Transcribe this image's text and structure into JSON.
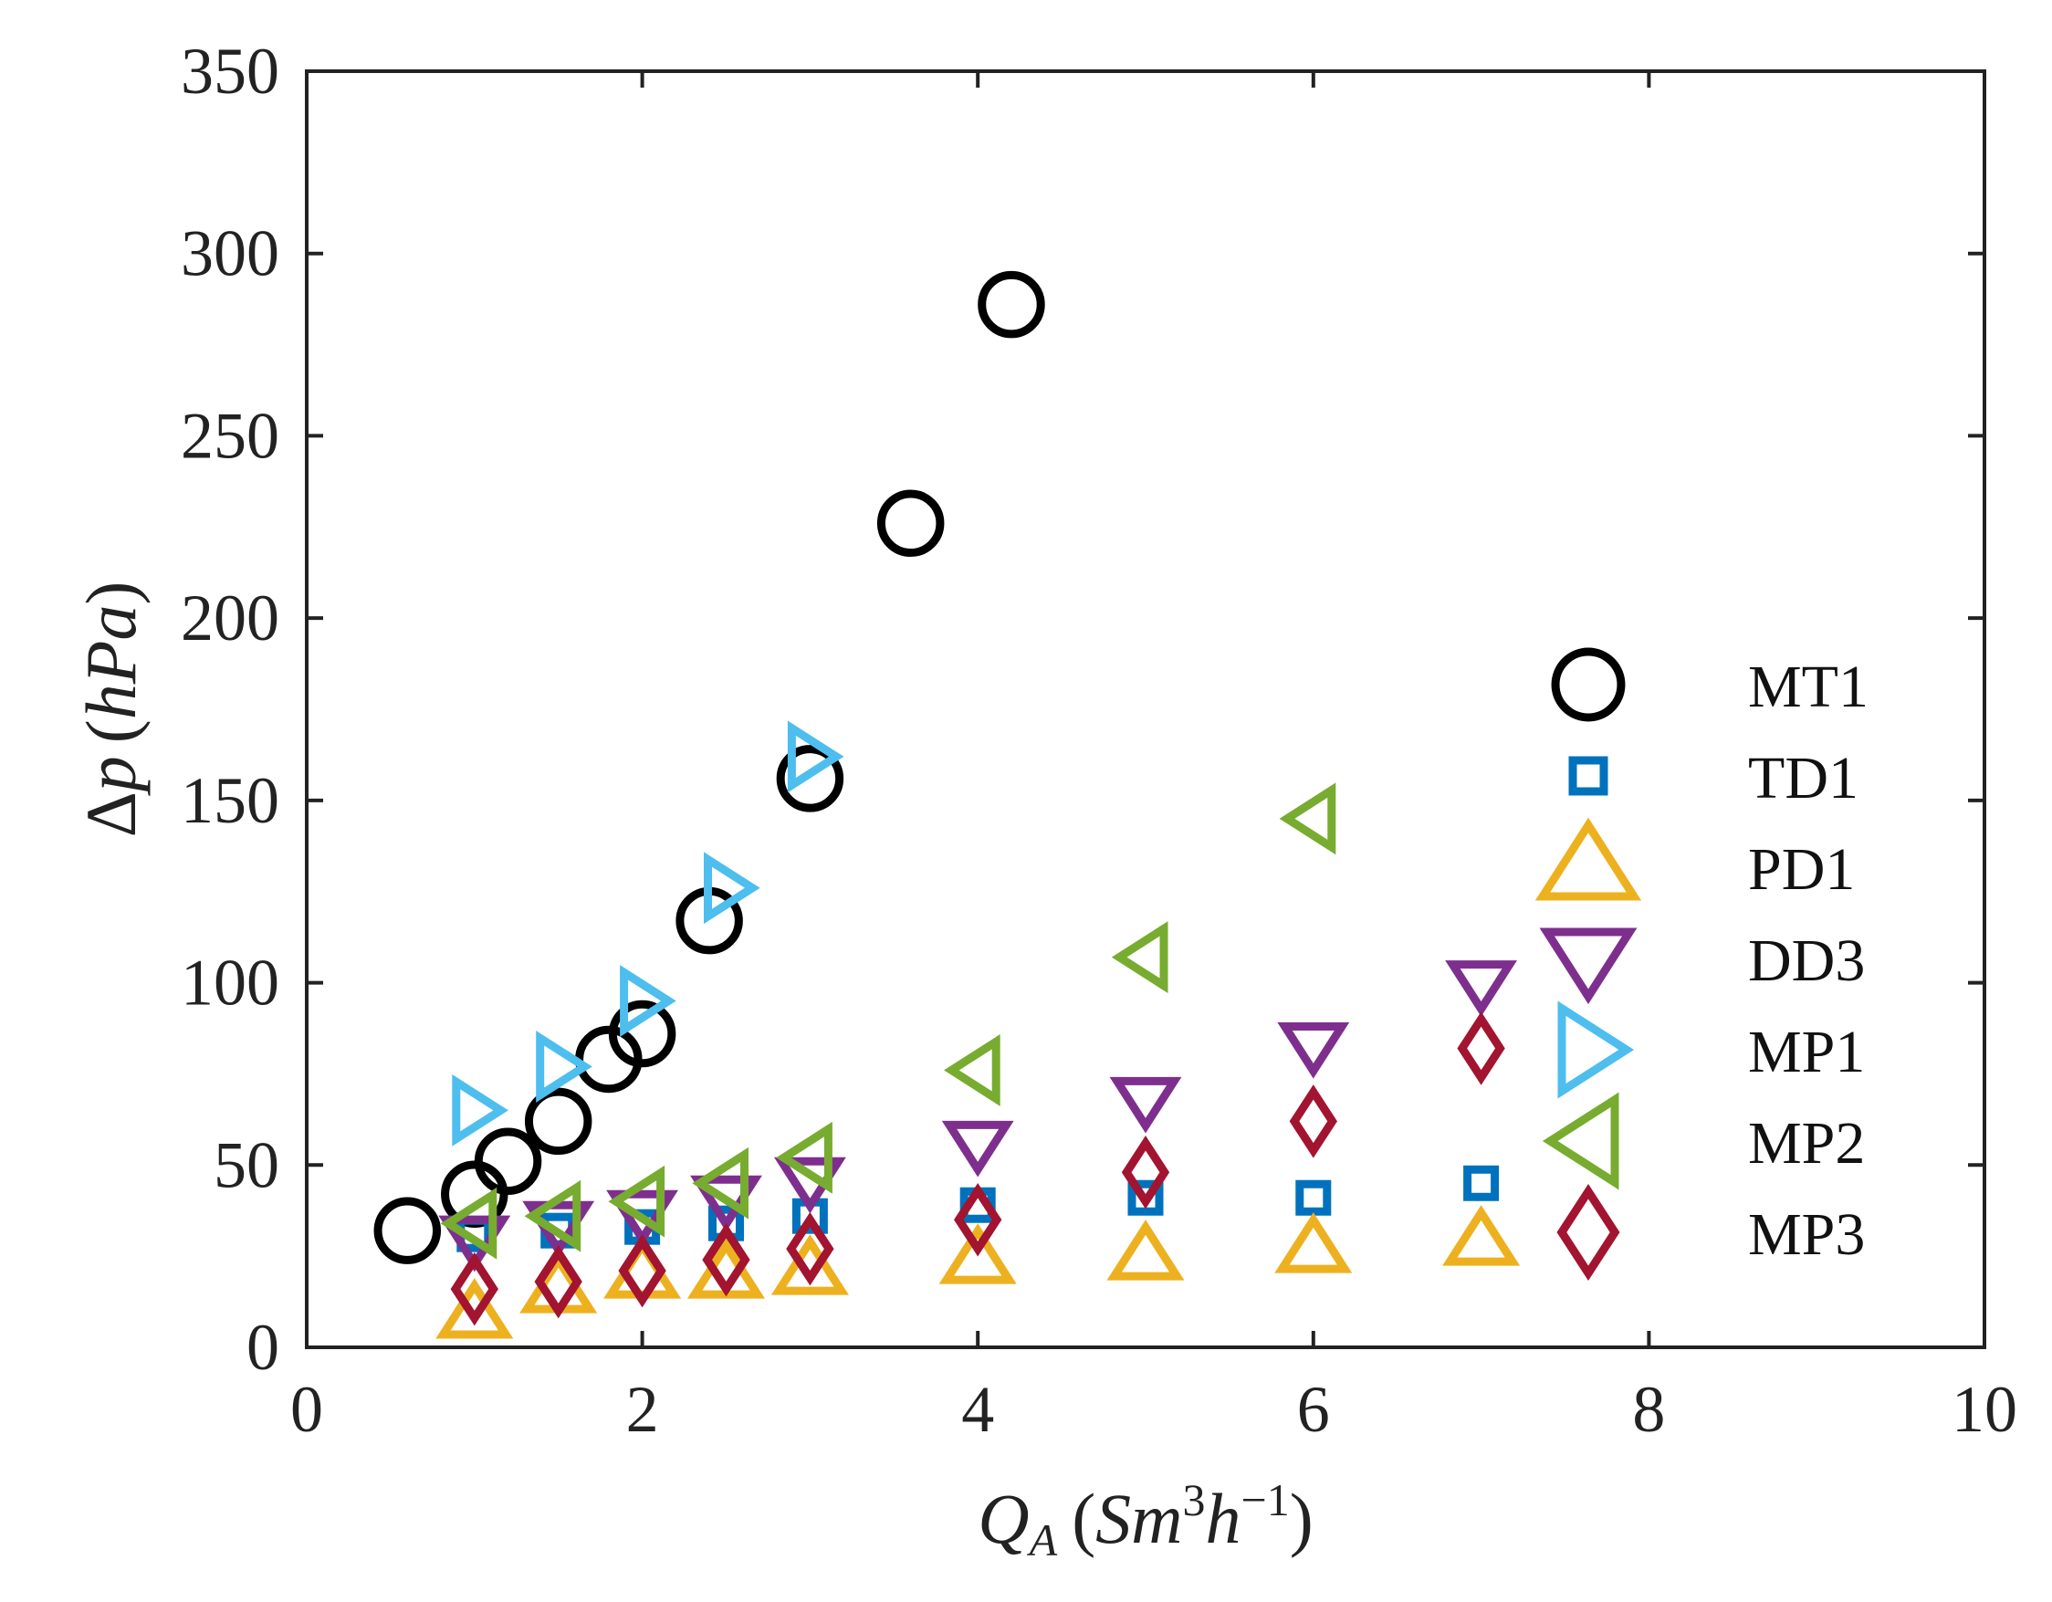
{
  "chart_data": {
    "type": "scatter",
    "title": "",
    "xlabel": {
      "symbol": "Q",
      "subscript": "A",
      "unit_open": "(",
      "unit_letter1": "Sm",
      "unit_exp1": "3",
      "unit_letter2": "h",
      "unit_exp2": "−1",
      "unit_close": ")"
    },
    "ylabel": {
      "symbol": "Δ",
      "variable": "p",
      "unit_open": "(",
      "unit": "hPa",
      "unit_close": ")"
    },
    "xlim": [
      0,
      10
    ],
    "ylim": [
      0,
      350
    ],
    "xticks": [
      0,
      2,
      4,
      6,
      8,
      10
    ],
    "yticks": [
      0,
      50,
      100,
      150,
      200,
      250,
      300,
      350
    ],
    "grid": false,
    "legend_position": "right",
    "series": [
      {
        "name": "MT1",
        "marker": "circle",
        "color": "#000000",
        "points": [
          [
            0.6,
            32
          ],
          [
            1.0,
            42
          ],
          [
            1.2,
            51
          ],
          [
            1.5,
            62
          ],
          [
            1.8,
            79
          ],
          [
            2.0,
            86
          ],
          [
            2.4,
            117
          ],
          [
            3.0,
            156
          ],
          [
            3.6,
            226
          ],
          [
            4.2,
            286
          ]
        ]
      },
      {
        "name": "TD1",
        "marker": "square",
        "color": "#0072BD",
        "points": [
          [
            1.0,
            31
          ],
          [
            1.5,
            32
          ],
          [
            2.0,
            33
          ],
          [
            2.5,
            34
          ],
          [
            3.0,
            36
          ],
          [
            4.0,
            39
          ],
          [
            5.0,
            41
          ],
          [
            6.0,
            41
          ],
          [
            7.0,
            45
          ]
        ]
      },
      {
        "name": "PD1",
        "marker": "triangle-up",
        "color": "#EDB120",
        "points": [
          [
            1.0,
            9
          ],
          [
            1.5,
            16
          ],
          [
            2.0,
            20
          ],
          [
            2.5,
            20
          ],
          [
            3.0,
            21
          ],
          [
            4.0,
            24
          ],
          [
            5.0,
            25
          ],
          [
            6.0,
            27
          ],
          [
            7.0,
            29
          ]
        ]
      },
      {
        "name": "DD3",
        "marker": "triangle-down",
        "color": "#7E2F8E",
        "points": [
          [
            1.0,
            30
          ],
          [
            1.5,
            34
          ],
          [
            2.0,
            37
          ],
          [
            2.5,
            41
          ],
          [
            3.0,
            46
          ],
          [
            4.0,
            56
          ],
          [
            5.0,
            68
          ],
          [
            6.0,
            83
          ],
          [
            7.0,
            100
          ]
        ]
      },
      {
        "name": "MP1",
        "marker": "triangle-right",
        "color": "#4DBEEE",
        "points": [
          [
            1.0,
            65
          ],
          [
            1.5,
            77
          ],
          [
            2.0,
            95
          ],
          [
            2.5,
            126
          ],
          [
            3.0,
            162
          ]
        ]
      },
      {
        "name": "MP2",
        "marker": "triangle-left",
        "color": "#77AC30",
        "points": [
          [
            1.0,
            34
          ],
          [
            1.5,
            36
          ],
          [
            2.0,
            40
          ],
          [
            2.5,
            45
          ],
          [
            3.0,
            52
          ],
          [
            4.0,
            76
          ],
          [
            5.0,
            107
          ],
          [
            6.0,
            145
          ]
        ]
      },
      {
        "name": "MP3",
        "marker": "diamond",
        "color": "#A2142F",
        "points": [
          [
            1.0,
            16
          ],
          [
            1.5,
            18
          ],
          [
            2.0,
            21
          ],
          [
            2.5,
            24
          ],
          [
            3.0,
            27
          ],
          [
            4.0,
            35
          ],
          [
            5.0,
            48
          ],
          [
            6.0,
            62
          ],
          [
            7.0,
            82
          ]
        ]
      }
    ]
  }
}
